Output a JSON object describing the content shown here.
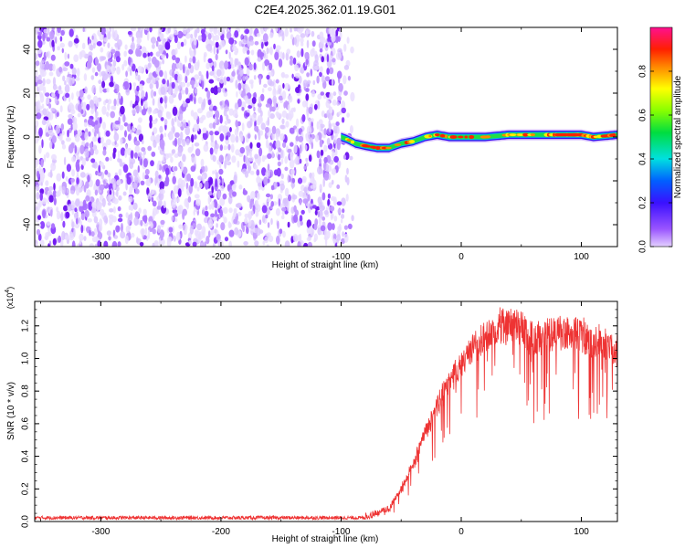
{
  "title": "C2E4.2025.362.01.19.G01",
  "colors": {
    "snr_line": "#ee3333",
    "axis": "#000000"
  },
  "chart_data": [
    {
      "type": "heatmap",
      "xlabel": "Height of straight line (km)",
      "ylabel": "Frequency (Hz)",
      "xlim": [
        -355,
        130
      ],
      "ylim": [
        -50,
        50
      ],
      "x_ticks": [
        -300,
        -200,
        -100,
        0,
        100
      ],
      "y_ticks": [
        -40,
        -20,
        0,
        20,
        40
      ],
      "noise_region_x": [
        -355,
        -90
      ],
      "signal_trace": [
        {
          "x": -100,
          "y": 0
        },
        {
          "x": -95,
          "y": -1
        },
        {
          "x": -88,
          "y": -3
        },
        {
          "x": -80,
          "y": -4
        },
        {
          "x": -70,
          "y": -5
        },
        {
          "x": -60,
          "y": -5
        },
        {
          "x": -50,
          "y": -3
        },
        {
          "x": -40,
          "y": -2
        },
        {
          "x": -30,
          "y": 0
        },
        {
          "x": -20,
          "y": 1
        },
        {
          "x": -10,
          "y": 0
        },
        {
          "x": 0,
          "y": 0
        },
        {
          "x": 20,
          "y": 0
        },
        {
          "x": 40,
          "y": 1
        },
        {
          "x": 60,
          "y": 1
        },
        {
          "x": 80,
          "y": 1
        },
        {
          "x": 100,
          "y": 1
        },
        {
          "x": 110,
          "y": 0
        },
        {
          "x": 130,
          "y": 1
        }
      ]
    },
    {
      "type": "line",
      "xlabel": "Height of straight line (km)",
      "ylabel": "SNR (10 * v/v)",
      "y_multiplier": "(x10",
      "y_multiplier_exp": "4",
      "y_multiplier_close": ")",
      "xlim": [
        -355,
        130
      ],
      "ylim": [
        0,
        1.35
      ],
      "x_ticks": [
        -300,
        -200,
        -100,
        0,
        100
      ],
      "y_ticks": [
        "0.0",
        "0.2",
        "0.4",
        "0.6",
        "0.8",
        "1.0",
        "1.2"
      ],
      "envelope": [
        {
          "x": -355,
          "y": 0.02
        },
        {
          "x": -110,
          "y": 0.02
        },
        {
          "x": -80,
          "y": 0.03
        },
        {
          "x": -60,
          "y": 0.08
        },
        {
          "x": -50,
          "y": 0.2
        },
        {
          "x": -40,
          "y": 0.35
        },
        {
          "x": -30,
          "y": 0.55
        },
        {
          "x": -20,
          "y": 0.72
        },
        {
          "x": -10,
          "y": 0.85
        },
        {
          "x": 0,
          "y": 0.98
        },
        {
          "x": 10,
          "y": 1.08
        },
        {
          "x": 20,
          "y": 1.15
        },
        {
          "x": 30,
          "y": 1.2
        },
        {
          "x": 40,
          "y": 1.22
        },
        {
          "x": 50,
          "y": 1.2
        },
        {
          "x": 60,
          "y": 1.13
        },
        {
          "x": 70,
          "y": 1.15
        },
        {
          "x": 80,
          "y": 1.17
        },
        {
          "x": 90,
          "y": 1.18
        },
        {
          "x": 100,
          "y": 1.15
        },
        {
          "x": 110,
          "y": 1.12
        },
        {
          "x": 120,
          "y": 1.1
        },
        {
          "x": 130,
          "y": 1.05
        }
      ]
    }
  ],
  "colorbar": {
    "label": "Normalized spectral amplitude",
    "range": [
      0,
      1
    ],
    "ticks": [
      "0.0",
      "0.2",
      "0.4",
      "0.6",
      "0.8"
    ]
  }
}
